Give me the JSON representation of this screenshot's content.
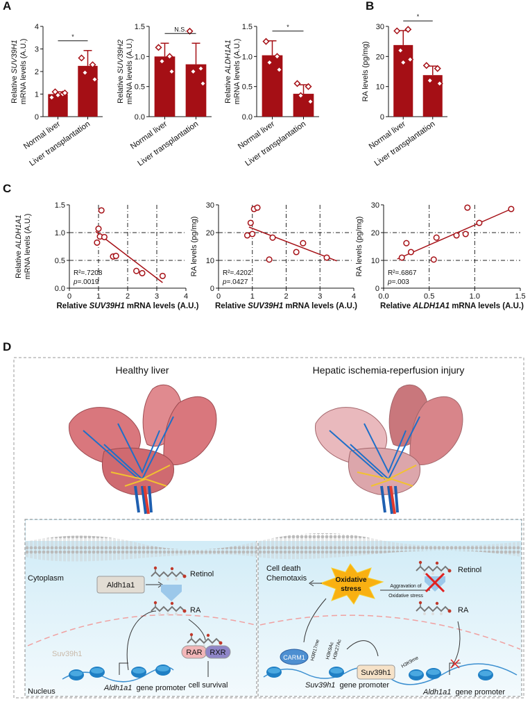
{
  "panels": [
    "A",
    "B",
    "C",
    "D"
  ],
  "chart_data": [
    {
      "type": "bar",
      "categories": [
        "Normal liver",
        "Liver transplantation"
      ],
      "values": [
        1.0,
        2.25
      ],
      "errors": [
        0.1,
        0.68
      ],
      "points": [
        [
          0.85,
          1.0,
          1.1,
          1.05,
          0.95
        ],
        [
          2.6,
          2.3,
          1.95,
          1.65
        ]
      ],
      "color": "#a50f15",
      "ylim": [
        0,
        4
      ],
      "yticks": [
        0,
        1,
        2,
        3,
        4
      ],
      "ylabel": {
        "prefix": "Relative",
        "gene": "SUV39H1",
        "line2": "mRNA levels (A.U.)"
      },
      "annotation": "*"
    },
    {
      "type": "bar",
      "categories": [
        "Normal liver",
        "Liver transplantation"
      ],
      "values": [
        1.0,
        0.87
      ],
      "errors": [
        0.22,
        0.35
      ],
      "points": [
        [
          1.15,
          1.0,
          0.92,
          0.75
        ],
        [
          1.42,
          0.8,
          0.75,
          0.55
        ]
      ],
      "color": "#a50f15",
      "ylim": [
        0,
        1.5
      ],
      "yticks": [
        {
          "value": 0,
          "label": "0.0"
        },
        {
          "value": 0.5,
          "label": "0.5"
        },
        {
          "value": 1.0,
          "label": "1.0"
        },
        {
          "value": 1.5,
          "label": "1.5"
        }
      ],
      "ylabel": {
        "prefix": "Relative",
        "gene": "SUV39H2",
        "line2": "mRNA levels (A.U.)"
      },
      "annotation": "N.S."
    },
    {
      "type": "bar",
      "categories": [
        "Normal liver",
        "Liver transplantation"
      ],
      "values": [
        1.02,
        0.38
      ],
      "errors": [
        0.24,
        0.15
      ],
      "points": [
        [
          1.25,
          1.0,
          0.9,
          0.78
        ],
        [
          0.55,
          0.5,
          0.35,
          0.25
        ]
      ],
      "color": "#a50f15",
      "ylim": [
        0,
        1.5
      ],
      "yticks": [
        {
          "value": 0,
          "label": "0.0"
        },
        {
          "value": 0.5,
          "label": "0.5"
        },
        {
          "value": 1.0,
          "label": "1.0"
        },
        {
          "value": 1.5,
          "label": "1.5"
        }
      ],
      "ylabel": {
        "prefix": "Relative",
        "gene": "ALDH1A1",
        "line2": "mRNA levels (A.U.)"
      },
      "annotation": "*"
    },
    {
      "type": "bar",
      "categories": [
        "Normal liver",
        "Liver transplantation"
      ],
      "values": [
        23.8,
        13.8
      ],
      "errors": [
        4.8,
        3.0
      ],
      "points": [
        [
          28.5,
          29,
          22,
          19,
          18
        ],
        [
          17,
          16,
          12,
          11
        ]
      ],
      "color": "#a50f15",
      "ylim": [
        0,
        30
      ],
      "yticks": [
        0,
        10,
        20,
        30
      ],
      "ylabel": {
        "text": "RA levels (pg/mg)"
      },
      "annotation": "*"
    },
    {
      "type": "scatter",
      "x": [
        0.95,
        1.0,
        1.05,
        1.1,
        1.2,
        1.5,
        1.6,
        2.3,
        2.5,
        3.2
      ],
      "y": [
        0.82,
        1.07,
        0.93,
        1.4,
        0.92,
        0.57,
        0.58,
        0.31,
        0.27,
        0.22
      ],
      "color": "#a50f15",
      "grid": true,
      "xlim": [
        0,
        4
      ],
      "xticks": [
        0,
        1,
        2,
        3,
        4
      ],
      "ylim": [
        0,
        1.5
      ],
      "yticks": [
        {
          "value": 0,
          "label": "0.0"
        },
        {
          "value": 0.5,
          "label": "0.5"
        },
        {
          "value": 1.0,
          "label": "1.0"
        },
        {
          "value": 1.5,
          "label": "1.5"
        }
      ],
      "fit": {
        "x": [
          0.9,
          3.2
        ],
        "y": [
          1.02,
          0.1
        ]
      },
      "xlabel": {
        "prefix": "Relative",
        "gene": "SUV39H1",
        "suffix": "mRNA levels (A.U.)"
      },
      "ylabel": {
        "prefix": "Relative",
        "gene": "ALDH1A1",
        "line2": "mRNA levels (A.U.)"
      },
      "stats": {
        "r2": "R²=.7208",
        "p_symbol": "p",
        "p_value": "=.0019"
      }
    },
    {
      "type": "scatter",
      "x": [
        0.85,
        0.95,
        1.0,
        1.05,
        1.15,
        1.6,
        1.5,
        2.3,
        2.5,
        3.2
      ],
      "y": [
        19,
        23.5,
        19.5,
        28.5,
        29,
        18.2,
        10.3,
        13,
        16.2,
        11
      ],
      "color": "#a50f15",
      "grid": true,
      "xlim": [
        0,
        4
      ],
      "xticks": [
        0,
        1,
        2,
        3,
        4
      ],
      "ylim": [
        0,
        30
      ],
      "yticks": [
        0,
        10,
        20,
        30
      ],
      "fit": {
        "x": [
          0.9,
          3.5
        ],
        "y": [
          22,
          9.8
        ]
      },
      "xlabel": {
        "prefix": "Relative",
        "gene": "SUV39H1",
        "suffix": "mRNA levels (A.U.)"
      },
      "ylabel": {
        "text": "RA levels (pg/mg)"
      },
      "stats": {
        "r2": "R²=.4202",
        "p_symbol": "p",
        "p_value": "=.0427"
      }
    },
    {
      "type": "scatter",
      "x": [
        0.2,
        0.25,
        0.3,
        0.55,
        0.58,
        0.8,
        0.9,
        0.92,
        1.05,
        1.4
      ],
      "y": [
        11,
        16.2,
        13,
        10.3,
        18.2,
        19,
        19.5,
        29,
        23.5,
        28.5
      ],
      "color": "#a50f15",
      "grid": true,
      "xlim": [
        0,
        1.5
      ],
      "xticks": [
        {
          "value": 0,
          "label": "0.0"
        },
        {
          "value": 0.5,
          "label": "0.5"
        },
        {
          "value": 1.0,
          "label": "1.0"
        },
        {
          "value": 1.5,
          "label": "1.5"
        }
      ],
      "ylim": [
        0,
        30
      ],
      "yticks": [
        0,
        10,
        20,
        30
      ],
      "fit": {
        "x": [
          0.15,
          1.4
        ],
        "y": [
          10.5,
          28.5
        ]
      },
      "xlabel": {
        "prefix": "Relative",
        "gene": "ALDH1A1",
        "suffix": "mRNA levels (A.U.)"
      },
      "ylabel": {
        "text": "RA levels (pg/mg)"
      },
      "stats": {
        "r2": "R²=.6867",
        "p_symbol": "p",
        "p_value": "=.003"
      }
    }
  ],
  "diagram": {
    "left_title": "Healthy liver",
    "right_title": "Hepatic ischemia-reperfusion injury",
    "cytoplasm": "Cytoplasm",
    "nucleus": "Nucleus",
    "left": {
      "enzyme": "Aldh1a1",
      "retinol": "Retinol",
      "ra": "RA",
      "rar": "RAR",
      "rxr": "RXR",
      "survival": "cell survival",
      "suv": "Suv39h1",
      "promoter_gene": "Aldh1a1",
      "promoter_text": "gene promoter"
    },
    "right": {
      "death": "Cell death",
      "chemotaxis": "Chemotaxis",
      "stress1": "Oxidative",
      "stress2": "stress",
      "aggravation1": "Aggravation of",
      "aggravation2": "Oxidative stress",
      "retinol": "Retinol",
      "ra": "RA",
      "carm1": "CARM1",
      "h3r17": "H3R17me",
      "h3k9ac": "H3K9Ac",
      "h3k27ac": "H3K27Ac",
      "suv": "Suv39h1",
      "h3k9me": "H3K9me",
      "suv_gene": "Suv39h1",
      "suv_text": "gene promoter",
      "aldh_gene": "Aldh1a1",
      "aldh_text": "gene promoter"
    }
  }
}
